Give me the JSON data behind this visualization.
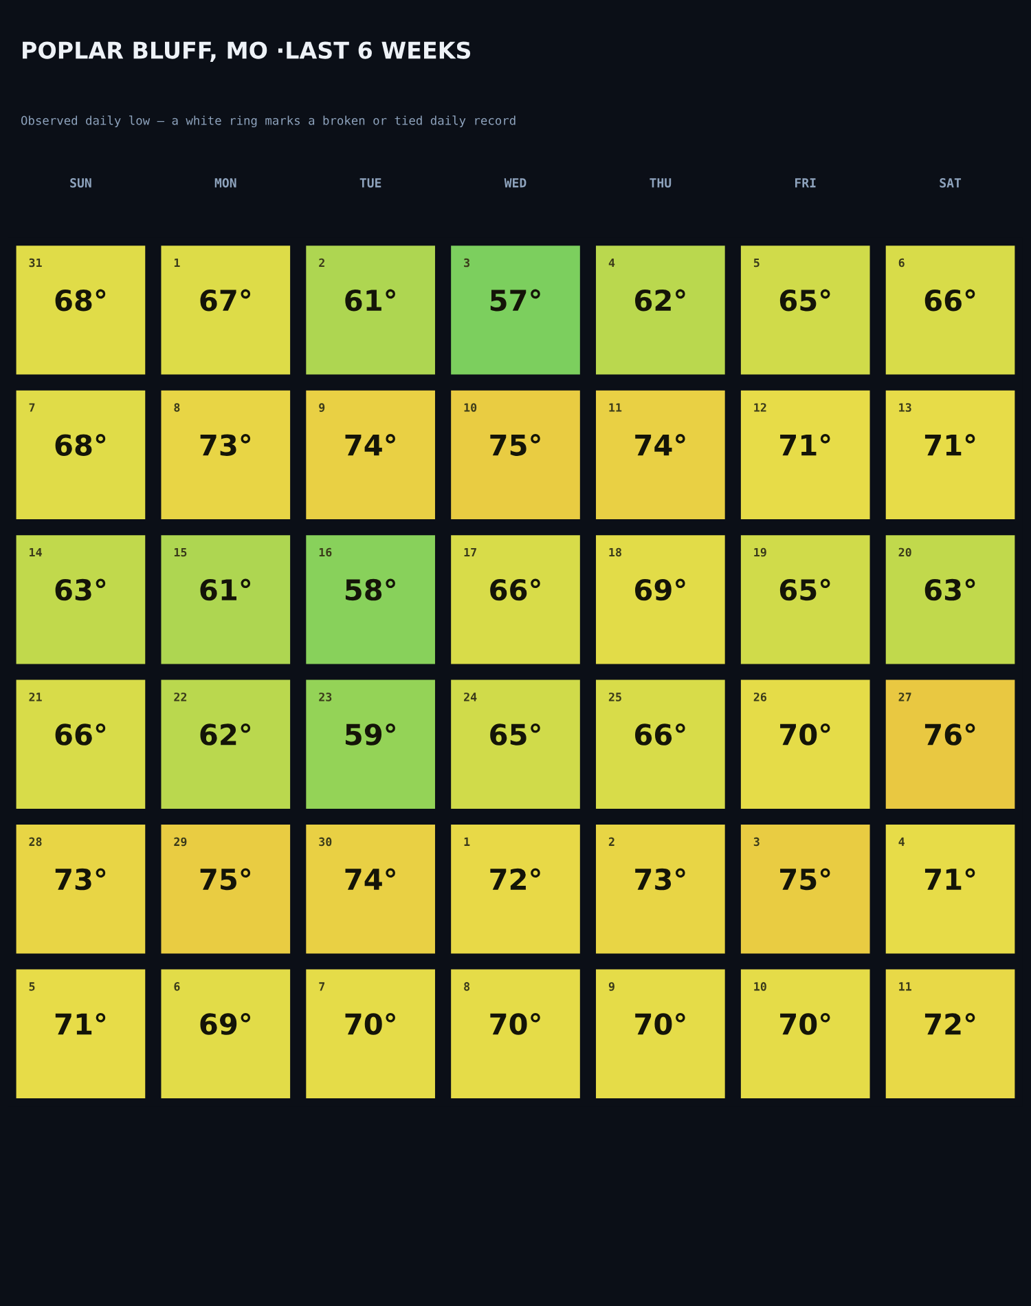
{
  "chart_data": {
    "type": "heatmap",
    "title": "POPLAR BLUFF, MO ·LAST 6 WEEKS",
    "subtitle": "Observed daily low — a white ring marks a broken or tied daily record",
    "categories": [
      "SUN",
      "MON",
      "TUE",
      "WED",
      "THU",
      "FRI",
      "SAT"
    ],
    "y_categories": [
      null,
      null,
      null,
      null,
      null,
      null
    ],
    "cells": [
      [
        68,
        67,
        61,
        57,
        62,
        65,
        66
      ],
      [
        68,
        73,
        74,
        75,
        74,
        71,
        71
      ],
      [
        63,
        61,
        58,
        66,
        69,
        65,
        63
      ],
      [
        66,
        62,
        59,
        65,
        66,
        70,
        76
      ],
      [
        73,
        75,
        74,
        72,
        73,
        75,
        71
      ],
      [
        71,
        69,
        70,
        70,
        70,
        70,
        72
      ]
    ],
    "cell_labels": [
      [
        "68°",
        "67°",
        "61°",
        "57°",
        "62°",
        "65°",
        "66°"
      ],
      [
        "68°",
        "73°",
        "74°",
        "75°",
        "74°",
        "71°",
        "71°"
      ],
      [
        "63°",
        "61°",
        "58°",
        "66°",
        "69°",
        "65°",
        "63°"
      ],
      [
        "66°",
        "62°",
        "59°",
        "65°",
        "66°",
        "70°",
        "76°"
      ],
      [
        "73°",
        "75°",
        "74°",
        "72°",
        "73°",
        "75°",
        "71°"
      ],
      [
        "71°",
        "69°",
        "70°",
        "70°",
        "70°",
        "70°",
        "72°"
      ]
    ],
    "annotations": [
      "31",
      "1",
      "2",
      "3",
      "4",
      "5",
      "6",
      "7",
      "8",
      "9",
      "10",
      "11",
      "12",
      "13",
      "14",
      "15",
      "16",
      "17",
      "18",
      "19",
      "20",
      "21",
      "22",
      "23",
      "24",
      "25",
      "26",
      "27",
      "28",
      "29",
      "30",
      "1",
      "2",
      "3",
      "4",
      "5",
      "6",
      "7",
      "8",
      "9",
      "10",
      "11"
    ]
  }
}
